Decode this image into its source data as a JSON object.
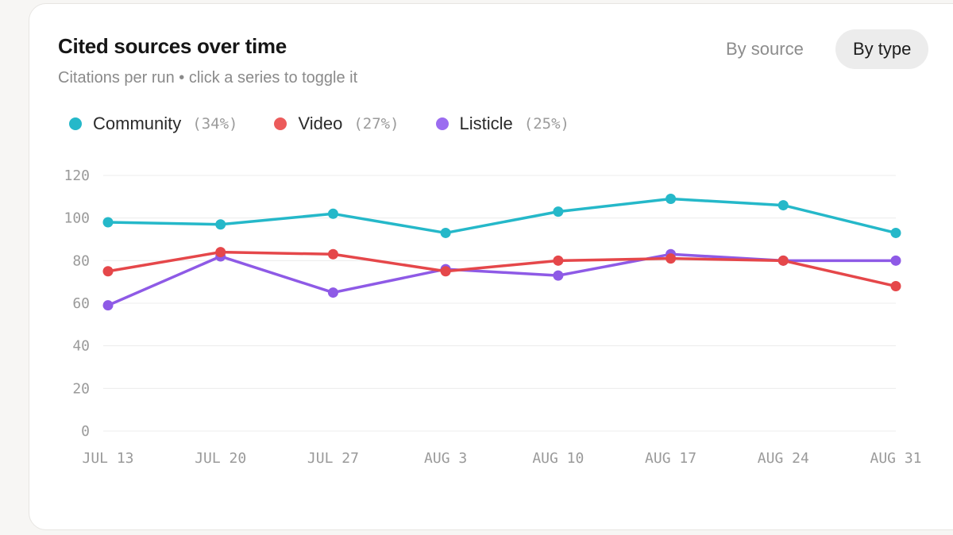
{
  "header": {
    "title": "Cited sources over time",
    "subtitle": "Citations per run • click a series to toggle it"
  },
  "toggles": {
    "by_source": "By source",
    "by_type": "By type",
    "active": "by_type"
  },
  "legend": [
    {
      "name": "Community",
      "pct": "(34%)",
      "color": "#25b8c9"
    },
    {
      "name": "Video",
      "pct": "(27%)",
      "color": "#ec5b5b"
    },
    {
      "name": "Listicle",
      "pct": "(25%)",
      "color": "#9b6cf0"
    }
  ],
  "chart_data": {
    "type": "line",
    "title": "Cited sources over time",
    "subtitle": "Citations per run • click a series to toggle it",
    "x": [
      "JUL 13",
      "JUL 20",
      "JUL 27",
      "AUG 3",
      "AUG 10",
      "AUG 17",
      "AUG 24",
      "AUG 31"
    ],
    "ylim": [
      0,
      120
    ],
    "yticks": [
      0,
      20,
      40,
      60,
      80,
      100,
      120
    ],
    "grid": true,
    "legend_position": "top-left",
    "series": [
      {
        "name": "Community",
        "color": "#25b8c9",
        "values": [
          98,
          97,
          102,
          93,
          103,
          109,
          106,
          93
        ]
      },
      {
        "name": "Listicle",
        "color": "#8e5ae6",
        "values": [
          59,
          82,
          65,
          76,
          73,
          83,
          80,
          80
        ]
      },
      {
        "name": "Video",
        "color": "#e5474a",
        "values": [
          75,
          84,
          83,
          75,
          80,
          81,
          80,
          68
        ]
      }
    ]
  }
}
